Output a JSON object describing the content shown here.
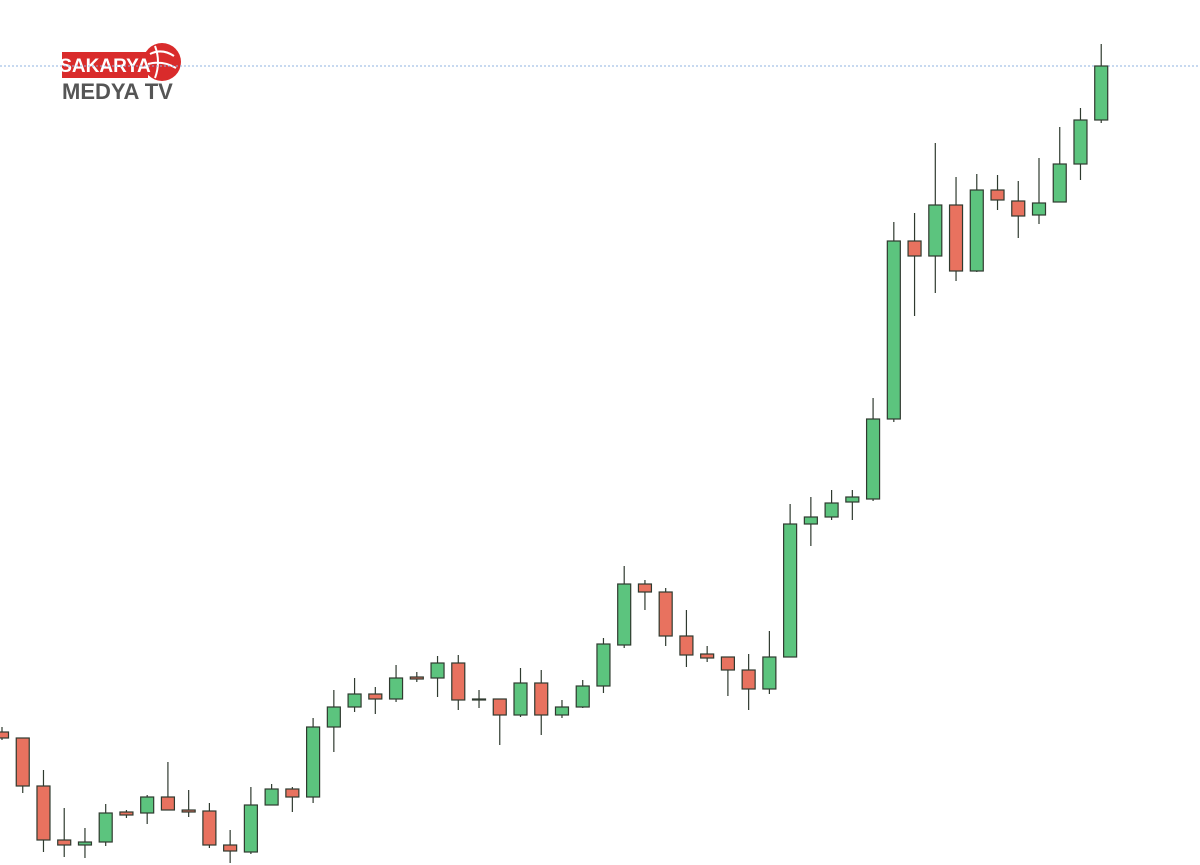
{
  "logo": {
    "top": "SAKARYA",
    "bottom": "MEDYA TV"
  },
  "chart_data": {
    "type": "candlestick",
    "open": [
      133,
      127,
      79,
      25,
      20,
      23,
      53,
      52,
      68,
      55,
      54,
      20,
      13,
      60,
      76,
      68,
      138,
      158,
      171,
      166,
      188,
      187,
      202,
      166,
      166,
      150,
      182,
      150,
      158,
      179,
      220,
      281,
      273,
      229,
      211,
      208,
      195,
      176,
      208,
      341,
      348,
      363,
      366,
      446,
      624,
      609,
      660,
      594,
      675,
      664,
      650,
      663,
      701,
      745
    ],
    "high": [
      138,
      127,
      95,
      57,
      37,
      61,
      55,
      70,
      103,
      75,
      62,
      35,
      78,
      81,
      78,
      147,
      175,
      187,
      178,
      200,
      193,
      209,
      210,
      175,
      166,
      197,
      195,
      165,
      185,
      227,
      299,
      285,
      277,
      255,
      219,
      208,
      211,
      234,
      361,
      368,
      375,
      375,
      467,
      643,
      652,
      722,
      688,
      691,
      690,
      684,
      707,
      738,
      757,
      821
    ],
    "low": [
      125,
      72,
      13,
      8,
      7,
      19,
      47,
      41,
      55,
      48,
      17,
      2,
      11,
      60,
      53,
      62,
      113,
      153,
      151,
      163,
      183,
      168,
      155,
      157,
      120,
      148,
      130,
      147,
      157,
      172,
      217,
      255,
      219,
      198,
      203,
      169,
      155,
      171,
      208,
      319,
      345,
      345,
      364,
      443,
      549,
      572,
      584,
      593,
      655,
      627,
      641,
      663,
      685,
      742
    ],
    "close": [
      127,
      79,
      25,
      20,
      23,
      52,
      50,
      68,
      55,
      53,
      20,
      14,
      60,
      76,
      68,
      138,
      158,
      171,
      166,
      187,
      186,
      202,
      165,
      165,
      150,
      182,
      150,
      158,
      179,
      221,
      281,
      273,
      229,
      210,
      207,
      195,
      176,
      208,
      341,
      348,
      362,
      368,
      446,
      624,
      609,
      660,
      594,
      675,
      665,
      649,
      662,
      701,
      745,
      799
    ],
    "up_color": "#5cc47e",
    "down_color": "#e8725f",
    "outline_color": "#2f3a2f",
    "ylim": [
      0,
      865
    ],
    "price_line": 799,
    "price_line_color": "#8fb3e0"
  }
}
